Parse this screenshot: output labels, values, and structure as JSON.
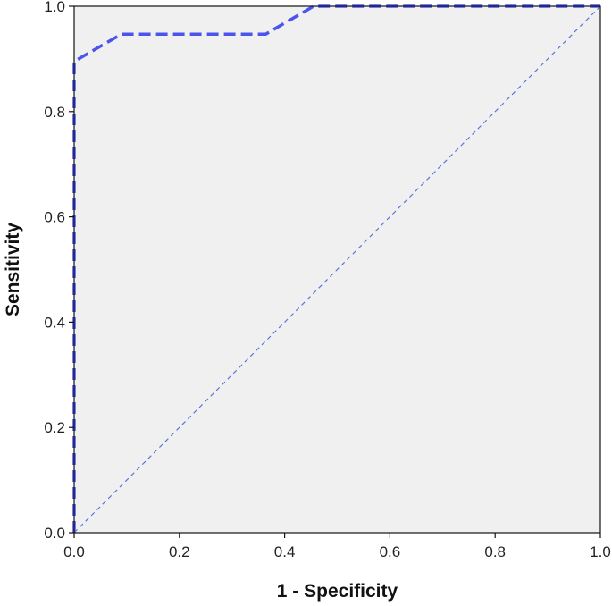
{
  "chart_data": {
    "type": "line",
    "title": "",
    "xlabel": "1 - Specificity",
    "ylabel": "Sensitivity",
    "xlim": [
      0.0,
      1.0
    ],
    "ylim": [
      0.0,
      1.0
    ],
    "x_ticks": [
      "0.0",
      "0.2",
      "0.4",
      "0.6",
      "0.8",
      "1.0"
    ],
    "y_ticks": [
      "0.0",
      "0.2",
      "0.4",
      "0.6",
      "0.8",
      "1.0"
    ],
    "grid": false,
    "background_color": "#f0f0f0",
    "series": [
      {
        "style": "dashed-thick",
        "color": "#4b55ee",
        "x": [
          0.0,
          0.0,
          0.09,
          0.364,
          0.455,
          1.0
        ],
        "y": [
          0.0,
          0.895,
          0.947,
          0.947,
          1.0,
          1.0
        ]
      },
      {
        "style": "dashed-thin",
        "color": "#5577dd",
        "x": [
          0.0,
          1.0
        ],
        "y": [
          0.0,
          1.0
        ]
      }
    ]
  }
}
